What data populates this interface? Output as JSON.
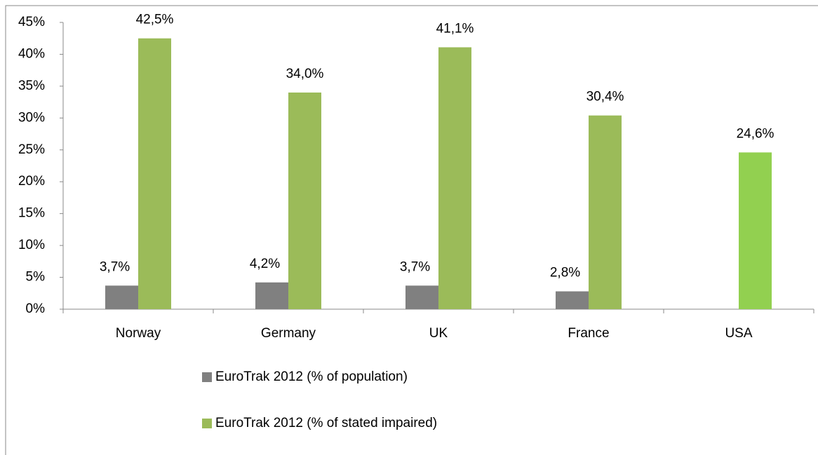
{
  "chart_data": {
    "type": "bar",
    "categories": [
      "Norway",
      "Germany",
      "UK",
      "France",
      "USA"
    ],
    "series": [
      {
        "name": "EuroTrak 2012 (% of population)",
        "color": "#808080",
        "values": [
          3.7,
          4.2,
          3.7,
          2.8,
          null
        ],
        "value_labels": [
          "3,7%",
          "4,2%",
          "3,7%",
          "2,8%",
          null
        ]
      },
      {
        "name": "EuroTrak 2012 (% of stated impaired)",
        "color": "#9bbb59",
        "colors": [
          "#9bbb59",
          "#9bbb59",
          "#9bbb59",
          "#9bbb59",
          "#92d050"
        ],
        "values": [
          42.5,
          34.0,
          41.1,
          30.4,
          24.6
        ],
        "value_labels": [
          "42,5%",
          "34,0%",
          "41,1%",
          "30,4%",
          "24,6%"
        ]
      }
    ],
    "ylim": [
      0,
      45
    ],
    "yticks": [
      {
        "value": 0,
        "label": "0%"
      },
      {
        "value": 5,
        "label": "5%"
      },
      {
        "value": 10,
        "label": "10%"
      },
      {
        "value": 15,
        "label": "15%"
      },
      {
        "value": 20,
        "label": "20%"
      },
      {
        "value": 25,
        "label": "25%"
      },
      {
        "value": 30,
        "label": "30%"
      },
      {
        "value": 35,
        "label": "35%"
      },
      {
        "value": 40,
        "label": "40%"
      },
      {
        "value": 45,
        "label": "45%"
      }
    ],
    "legend": "bottom",
    "grid": false
  }
}
